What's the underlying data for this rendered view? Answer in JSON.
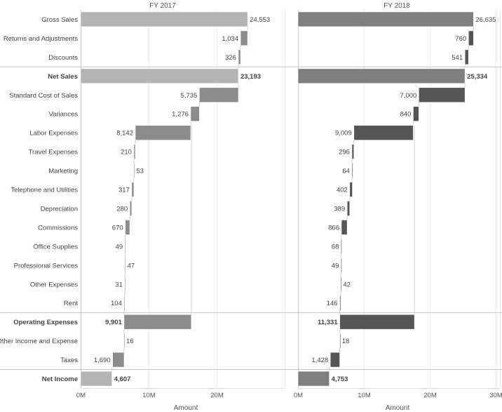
{
  "chart_data": {
    "type": "bar",
    "subtype": "waterfall",
    "title": "",
    "xlabel": "Amount",
    "panels": [
      {
        "title": "FY 2017",
        "xlim": [
          0,
          28
        ],
        "ticks": [
          "0M",
          "10M",
          "20M"
        ],
        "tick_values": [
          0,
          10,
          20
        ],
        "color_total": "#b4b4b4",
        "color_step": "#8c8c8c"
      },
      {
        "title": "FY 2018",
        "xlim": [
          0,
          30
        ],
        "ticks": [
          "0M",
          "10M",
          "20M",
          "30M"
        ],
        "tick_values": [
          0,
          10,
          20,
          30
        ],
        "color_total": "#7f7f7f",
        "color_step": "#555555"
      }
    ],
    "categories": [
      {
        "label": "Gross Sales",
        "kind": "total",
        "bold": false
      },
      {
        "label": "Returns and Adjustments",
        "kind": "step",
        "bold": false
      },
      {
        "label": "Discounts",
        "kind": "step",
        "bold": false
      },
      {
        "label": "Net Sales",
        "kind": "total",
        "bold": true
      },
      {
        "label": "Standard Cost of Sales",
        "kind": "step",
        "bold": false
      },
      {
        "label": "Variances",
        "kind": "step",
        "bold": false
      },
      {
        "label": "Labor Expenses",
        "kind": "step",
        "bold": false
      },
      {
        "label": "Travel Expenses",
        "kind": "step",
        "bold": false
      },
      {
        "label": "Marketing",
        "kind": "step",
        "bold": false
      },
      {
        "label": "Telephone and Utilities",
        "kind": "step",
        "bold": false
      },
      {
        "label": "Depreciation",
        "kind": "step",
        "bold": false
      },
      {
        "label": "Commissions",
        "kind": "step",
        "bold": false
      },
      {
        "label": "Office Supplies",
        "kind": "step",
        "bold": false
      },
      {
        "label": "Professional Services",
        "kind": "step",
        "bold": false
      },
      {
        "label": "Other Expenses",
        "kind": "step",
        "bold": false
      },
      {
        "label": "Rent",
        "kind": "step",
        "bold": false
      },
      {
        "label": "Operating Expenses",
        "kind": "subtotal",
        "bold": true
      },
      {
        "label": "Other Income and Expense",
        "kind": "step",
        "bold": false
      },
      {
        "label": "Taxes",
        "kind": "step",
        "bold": false
      },
      {
        "label": "Net Income",
        "kind": "total",
        "bold": true
      }
    ],
    "separators_after": [
      2,
      15,
      18
    ],
    "series": [
      {
        "name": "FY 2017",
        "values": [
          24553,
          1034,
          326,
          23193,
          5735,
          1276,
          8142,
          210,
          53,
          317,
          280,
          670,
          49,
          47,
          31,
          104,
          9901,
          16,
          1690,
          4607
        ],
        "labels": [
          "24,553",
          "1,034",
          "326",
          "23,193",
          "5,735",
          "1,276",
          "8,142",
          "210",
          "53",
          "317",
          "280",
          "670",
          "49",
          "47",
          "31",
          "104",
          "9,901",
          "16",
          "1,690",
          "4,607"
        ]
      },
      {
        "name": "FY 2018",
        "values": [
          26635,
          760,
          541,
          25334,
          7000,
          840,
          9009,
          296,
          64,
          402,
          389,
          866,
          68,
          49,
          42,
          146,
          11331,
          18,
          1428,
          4753
        ],
        "labels": [
          "26,635",
          "760",
          "541",
          "25,334",
          "7,000",
          "840",
          "9,009",
          "296",
          "64",
          "402",
          "389",
          "866",
          "68",
          "49",
          "42",
          "146",
          "11,331",
          "18",
          "1,428",
          "4,753"
        ]
      }
    ],
    "bar_ranges_thousands": {
      "FY 2017": [
        [
          0,
          24553
        ],
        [
          23519,
          24553
        ],
        [
          23193,
          23519
        ],
        [
          0,
          23193
        ],
        [
          17458,
          23193
        ],
        [
          16182,
          17458
        ],
        [
          8040,
          16182
        ],
        [
          7830,
          8040
        ],
        [
          7830,
          7883
        ],
        [
          7513,
          7830
        ],
        [
          7233,
          7513
        ],
        [
          6563,
          7233
        ],
        [
          6514,
          6563
        ],
        [
          6514,
          6561
        ],
        [
          6483,
          6514
        ],
        [
          6379,
          6483
        ],
        [
          6379,
          16280
        ],
        [
          6379,
          6395
        ],
        [
          4705,
          6395
        ],
        [
          0,
          4607
        ]
      ],
      "FY 2018": [
        [
          0,
          26635
        ],
        [
          25875,
          26635
        ],
        [
          25334,
          25875
        ],
        [
          0,
          25334
        ],
        [
          18334,
          25334
        ],
        [
          17494,
          18334
        ],
        [
          8485,
          17494
        ],
        [
          8189,
          8485
        ],
        [
          8189,
          8253
        ],
        [
          7851,
          8253
        ],
        [
          7462,
          7851
        ],
        [
          6596,
          7462
        ],
        [
          6528,
          6596
        ],
        [
          6528,
          6577
        ],
        [
          6486,
          6528
        ],
        [
          6340,
          6486
        ],
        [
          6340,
          17671
        ],
        [
          6340,
          6358
        ],
        [
          4912,
          6340
        ],
        [
          0,
          4753
        ]
      ]
    },
    "label_side": {
      "FY 2017": [
        "right",
        "left",
        "left",
        "right",
        "left",
        "left",
        "left",
        "left",
        "right",
        "left",
        "left",
        "left",
        "left",
        "right",
        "left",
        "left",
        "left",
        "right",
        "left",
        "right"
      ],
      "FY 2018": [
        "right",
        "left",
        "left",
        "right",
        "left",
        "left",
        "left",
        "left",
        "left",
        "left",
        "left",
        "left",
        "left",
        "left",
        "right",
        "left",
        "left",
        "right",
        "left",
        "right"
      ]
    },
    "grid": true,
    "legend": "none"
  }
}
